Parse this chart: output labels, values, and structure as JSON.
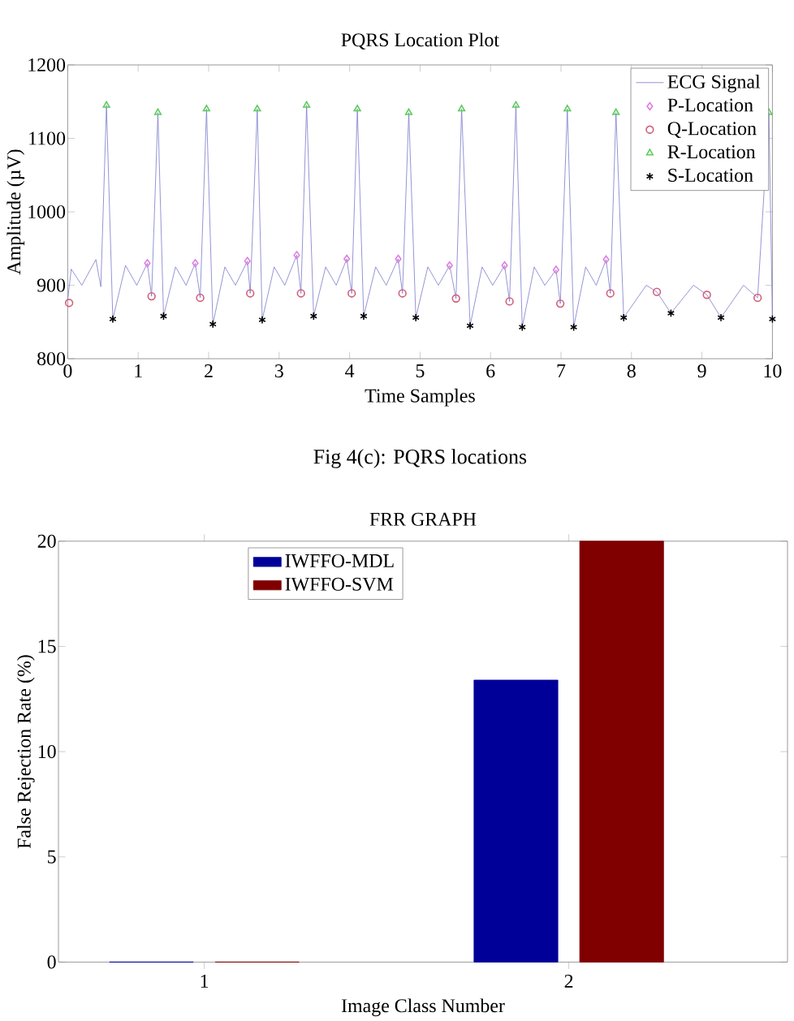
{
  "chart_data": [
    {
      "type": "line",
      "title": "PQRS Location Plot",
      "xlabel": "Time Samples",
      "ylabel": "Amplitude (µV)",
      "annotations": [
        "Fig 4(c): PQRS locations"
      ],
      "xlim": [
        0,
        10
      ],
      "ylim": [
        800,
        1200
      ],
      "xticks": [
        0,
        1,
        2,
        3,
        4,
        5,
        6,
        7,
        8,
        9,
        10
      ],
      "yticks": [
        800,
        900,
        1000,
        1100,
        1200
      ],
      "grid": false,
      "legend": "top right",
      "series": [
        {
          "name": "ECG Signal",
          "type": "line",
          "marker": "none",
          "color": "#7a7acc",
          "x": [
            0,
            0.05,
            0.2,
            0.4,
            0.47,
            0.55,
            0.64,
            0.82,
            0.98,
            1.13,
            1.19,
            1.28,
            1.36,
            1.53,
            1.68,
            1.81,
            1.88,
            1.97,
            2.06,
            2.23,
            2.38,
            2.55,
            2.59,
            2.69,
            2.76,
            2.93,
            3.08,
            3.25,
            3.31,
            3.39,
            3.49,
            3.66,
            3.81,
            3.96,
            4.03,
            4.11,
            4.2,
            4.37,
            4.52,
            4.69,
            4.75,
            4.84,
            4.94,
            5.11,
            5.26,
            5.42,
            5.51,
            5.59,
            5.71,
            5.88,
            6.03,
            6.2,
            6.27,
            6.36,
            6.45,
            6.62,
            6.77,
            6.93,
            6.99,
            7.09,
            7.18,
            7.35,
            7.5,
            7.64,
            7.7,
            7.78,
            7.89,
            8.21,
            8.36,
            8.56,
            8.88,
            9.07,
            9.27,
            9.59,
            9.79,
            9.95,
            10.0
          ],
          "values": [
            880,
            922,
            900,
            935,
            898,
            1145,
            854,
            927,
            900,
            930,
            885,
            1135,
            858,
            925,
            900,
            930,
            883,
            1140,
            847,
            925,
            900,
            933,
            889,
            1140,
            853,
            925,
            900,
            941,
            889,
            1145,
            858,
            925,
            900,
            936,
            889,
            1140,
            858,
            925,
            900,
            936,
            889,
            1135,
            856,
            925,
            900,
            927,
            882,
            1140,
            845,
            925,
            900,
            927,
            878,
            1145,
            843,
            925,
            900,
            921,
            875,
            1140,
            843,
            925,
            900,
            935,
            889,
            1135,
            856,
            900,
            891,
            862,
            900,
            887,
            856,
            900,
            883,
            1135,
            854
          ]
        },
        {
          "name": "P-Location",
          "type": "scatter",
          "marker": "diamond",
          "color": "#e07ee0",
          "x": [
            1.13,
            1.81,
            2.55,
            3.25,
            3.96,
            4.69,
            5.42,
            6.2,
            6.93,
            7.64
          ],
          "values": [
            930,
            930,
            933,
            941,
            936,
            936,
            927,
            927,
            921,
            935
          ]
        },
        {
          "name": "Q-Location",
          "type": "scatter",
          "marker": "circle",
          "color": "#d0607a",
          "x": [
            0.02,
            1.19,
            1.88,
            2.59,
            3.31,
            4.03,
            4.75,
            5.51,
            6.27,
            6.99,
            7.7,
            8.36,
            9.07,
            9.79
          ],
          "values": [
            876,
            885,
            883,
            889,
            889,
            889,
            889,
            882,
            878,
            875,
            889,
            891,
            887,
            883
          ]
        },
        {
          "name": "R-Location",
          "type": "scatter",
          "marker": "triangle",
          "color": "#5ccc5c",
          "x": [
            0.55,
            1.28,
            1.97,
            2.69,
            3.39,
            4.11,
            4.84,
            5.59,
            6.36,
            7.09,
            7.78,
            9.95
          ],
          "values": [
            1145,
            1135,
            1140,
            1140,
            1145,
            1140,
            1135,
            1140,
            1145,
            1140,
            1135,
            1135
          ]
        },
        {
          "name": "S-Location",
          "type": "scatter",
          "marker": "cross",
          "color": "#000000",
          "x": [
            0.64,
            1.36,
            2.06,
            2.76,
            3.49,
            4.2,
            4.94,
            5.71,
            6.45,
            7.18,
            7.89,
            8.56,
            9.27,
            10.0
          ],
          "values": [
            854,
            858,
            847,
            853,
            858,
            858,
            856,
            845,
            843,
            843,
            856,
            862,
            856,
            854
          ]
        }
      ]
    },
    {
      "type": "bar",
      "title": "FRR GRAPH",
      "xlabel": "Image Class Number",
      "ylabel": "False Rejection Rate (%)",
      "categories": [
        "1",
        "2"
      ],
      "ylim": [
        0,
        20
      ],
      "yticks": [
        0,
        5,
        10,
        15,
        20
      ],
      "grid": false,
      "legend": "top left",
      "series": [
        {
          "name": "IWFFO-MDL",
          "color": "#000099",
          "values": [
            0,
            13.4
          ]
        },
        {
          "name": "IWFFO-SVM",
          "color": "#800000",
          "values": [
            0,
            20
          ]
        }
      ]
    }
  ]
}
